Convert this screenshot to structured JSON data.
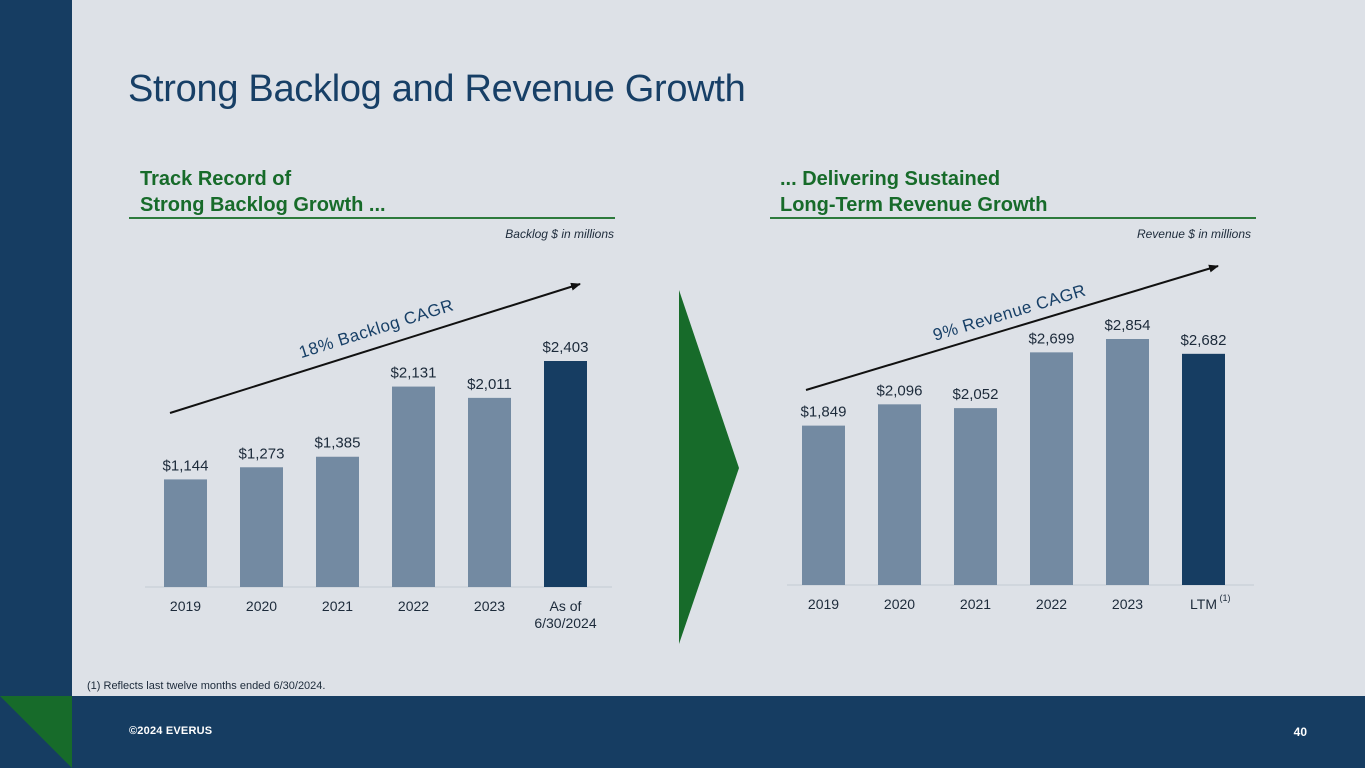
{
  "title": "Strong Backlog and Revenue Growth",
  "colors": {
    "bar": "#738aa2",
    "bar_highlight": "#163d62",
    "accent_green": "#176b2a",
    "navy": "#163d62"
  },
  "left_panel": {
    "heading_line1": "Track Record of",
    "heading_line2": "Strong Backlog Growth ...",
    "units": "Backlog $ in millions"
  },
  "right_panel": {
    "heading_line1": "... Delivering Sustained",
    "heading_line2": "Long-Term Revenue Growth",
    "units": "Revenue $ in millions"
  },
  "chart_data": [
    {
      "type": "bar",
      "title": "Backlog",
      "ylabel": "Backlog $ in millions",
      "categories": [
        [
          "2019"
        ],
        [
          "2020"
        ],
        [
          "2021"
        ],
        [
          "2022"
        ],
        [
          "2023"
        ],
        [
          "As of",
          "6/30/2024"
        ]
      ],
      "values": [
        1144,
        1273,
        1385,
        2131,
        2011,
        2403
      ],
      "labels": [
        "$1,144",
        "$1,273",
        "$1,385",
        "$2,131",
        "$2,011",
        "$2,403"
      ],
      "highlight_index": 5,
      "ylim": [
        0,
        2403
      ],
      "annotation": "18% Backlog CAGR"
    },
    {
      "type": "bar",
      "title": "Revenue",
      "ylabel": "Revenue $ in millions",
      "categories": [
        [
          "2019"
        ],
        [
          "2020"
        ],
        [
          "2021"
        ],
        [
          "2022"
        ],
        [
          "2023"
        ],
        [
          "LTM"
        ]
      ],
      "category_superscripts": [
        "",
        "",
        "",
        "",
        "",
        "(1)"
      ],
      "values": [
        1849,
        2096,
        2052,
        2699,
        2854,
        2682
      ],
      "labels": [
        "$1,849",
        "$2,096",
        "$2,052",
        "$2,699",
        "$2,854",
        "$2,682"
      ],
      "highlight_index": 5,
      "ylim": [
        0,
        2854
      ],
      "annotation": "9% Revenue CAGR"
    }
  ],
  "footnote": "(1)  Reflects last twelve months ended 6/30/2024.",
  "footer": {
    "copyright": "©2024 EVERUS",
    "page_number": "40"
  }
}
